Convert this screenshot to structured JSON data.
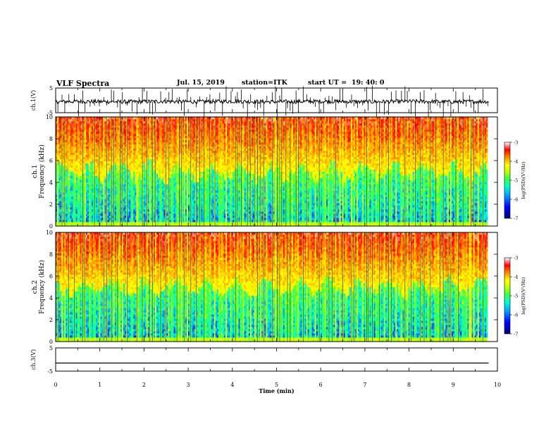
{
  "header": {
    "title": "VLF Spectra",
    "date": "Jul. 15, 2019",
    "station": "station=ITK",
    "start": "start UT =  19: 40: 0"
  },
  "colors": {
    "trace": "#000000",
    "colormap": [
      "#000080",
      "#0000ff",
      "#00a0ff",
      "#00ffd0",
      "#40ff40",
      "#c8ff00",
      "#ffff00",
      "#ff9000",
      "#ff0000",
      "#ffffff"
    ]
  },
  "chart_data": [
    {
      "type": "line",
      "panel": "ch.1 waveform",
      "ylabel": "ch.1(V)",
      "ylim": [
        -5,
        5
      ],
      "yticks": [
        "5",
        "-5"
      ],
      "xlim": [
        0,
        10
      ],
      "description_values": "noisy waveform with frequent impulsive spikes, baseline about -0.5 V",
      "x": [
        0,
        0.5,
        1,
        1.5,
        2,
        2.5,
        3,
        3.5,
        4,
        4.5,
        5,
        5.5,
        6,
        6.5,
        7,
        7.5,
        8,
        8.5,
        9,
        9.5,
        9.8
      ],
      "y": [
        -0.6,
        -0.4,
        -0.5,
        -0.6,
        -0.5,
        -0.4,
        -0.6,
        -0.5,
        -0.4,
        -0.5,
        -0.6,
        -0.5,
        -0.4,
        -0.5,
        -0.6,
        -0.5,
        -0.4,
        -0.5,
        -0.6,
        -0.5,
        -0.5
      ]
    },
    {
      "type": "heatmap",
      "panel": "ch.1 spectrogram",
      "ylabel": "ch.1\nFrequency (kHz)",
      "ylim": [
        0,
        10
      ],
      "yticks": [
        "0",
        "2",
        "4",
        "6",
        "8",
        "10"
      ],
      "xlim": [
        0,
        10
      ],
      "colorbar_label": "log(PSD)(V²/Hz)",
      "colorbar_ticks": [
        "-3",
        "-4",
        "-5",
        "-6",
        "-7"
      ],
      "colorbar_range": [
        -7,
        -3
      ],
      "noise_transition_khz": 5
    },
    {
      "type": "heatmap",
      "panel": "ch.2 spectrogram",
      "ylabel": "ch.2\nFrequency (kHz)",
      "ylim": [
        0,
        10
      ],
      "yticks": [
        "0",
        "2",
        "4",
        "6",
        "8",
        "10"
      ],
      "xlim": [
        0,
        10
      ],
      "colorbar_label": "log(PSD)(V²/Hz)",
      "colorbar_ticks": [
        "-3",
        "-4",
        "-5",
        "-6",
        "-7"
      ],
      "colorbar_range": [
        -7,
        -3
      ],
      "noise_transition_khz": 5
    },
    {
      "type": "line",
      "panel": "ch.3 waveform",
      "ylabel": "ch.3(V)",
      "ylim": [
        -5,
        5
      ],
      "yticks": [
        "5",
        "-5"
      ],
      "xlim": [
        0,
        10
      ],
      "x": [
        0,
        9.8
      ],
      "y": [
        -1.5,
        -1.5
      ]
    }
  ],
  "xaxis": {
    "label": "Time (min)",
    "ticks": [
      "0",
      "1",
      "2",
      "3",
      "4",
      "5",
      "6",
      "7",
      "8",
      "9",
      "10"
    ]
  }
}
